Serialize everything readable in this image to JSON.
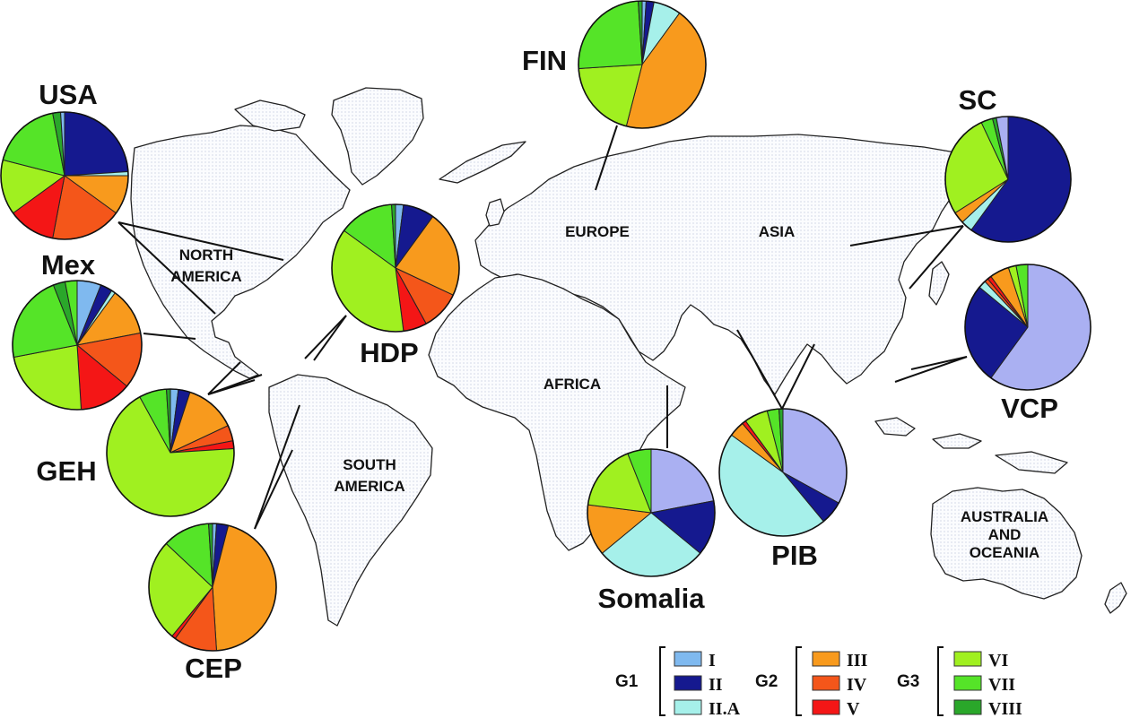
{
  "colors": {
    "I": "#7fb9ef",
    "II": "#15198f",
    "II.A": "#a6f0ea",
    "III": "#f89a1d",
    "IV": "#f4561a",
    "V": "#f41616",
    "VI": "#a0f020",
    "VII": "#55e428",
    "VIII": "#2aa72a",
    "Ilav": "#aab0f2"
  },
  "continents": {
    "north_america": [
      "NORTH",
      "AMERICA"
    ],
    "south_america": [
      "SOUTH",
      "AMERICA"
    ],
    "europe": "EUROPE",
    "asia": "ASIA",
    "africa": "AFRICA",
    "australia": [
      "AUSTRALIA",
      "AND",
      "OCEANIA"
    ]
  },
  "populations": [
    {
      "id": "usa",
      "label": "USA",
      "slices": [
        [
          "II",
          24
        ],
        [
          "II.A",
          1
        ],
        [
          "III",
          10
        ],
        [
          "IV",
          18
        ],
        [
          "V",
          12
        ],
        [
          "VI",
          14
        ],
        [
          "VII",
          18
        ],
        [
          "VIII",
          2
        ],
        [
          "I",
          1
        ]
      ]
    },
    {
      "id": "mex",
      "label": "Mex",
      "slices": [
        [
          "I",
          6
        ],
        [
          "II",
          3
        ],
        [
          "II.A",
          1
        ],
        [
          "III",
          12
        ],
        [
          "IV",
          14
        ],
        [
          "V",
          13
        ],
        [
          "VI",
          23
        ],
        [
          "VII",
          22
        ],
        [
          "VIII",
          3
        ],
        [
          "VII",
          3
        ]
      ]
    },
    {
      "id": "geh",
      "label": "GEH",
      "slices": [
        [
          "I",
          2
        ],
        [
          "II",
          3
        ],
        [
          "III",
          13
        ],
        [
          "IV",
          4
        ],
        [
          "V",
          2
        ],
        [
          "VI",
          68
        ],
        [
          "VII",
          7
        ],
        [
          "VIII",
          1
        ]
      ]
    },
    {
      "id": "cep",
      "label": "CEP",
      "slices": [
        [
          "I",
          1
        ],
        [
          "II",
          3
        ],
        [
          "III",
          45
        ],
        [
          "IV",
          11
        ],
        [
          "V",
          1
        ],
        [
          "VI",
          26
        ],
        [
          "VII",
          12
        ],
        [
          "VIII",
          1
        ]
      ]
    },
    {
      "id": "hdp",
      "label": "HDP",
      "slices": [
        [
          "I",
          2
        ],
        [
          "II",
          8
        ],
        [
          "III",
          22
        ],
        [
          "IV",
          10
        ],
        [
          "V",
          6
        ],
        [
          "VI",
          37
        ],
        [
          "VII",
          14
        ],
        [
          "VIII",
          1
        ]
      ]
    },
    {
      "id": "fin",
      "label": "FIN",
      "slices": [
        [
          "I",
          1
        ],
        [
          "II",
          2
        ],
        [
          "II.A",
          7
        ],
        [
          "III",
          44
        ],
        [
          "VI",
          20
        ],
        [
          "VII",
          25
        ],
        [
          "VIII",
          1
        ]
      ]
    },
    {
      "id": "sc",
      "label": "SC",
      "slices": [
        [
          "II",
          60
        ],
        [
          "II.A",
          3
        ],
        [
          "III",
          3
        ],
        [
          "VI",
          27
        ],
        [
          "VII",
          3
        ],
        [
          "VIII",
          1
        ],
        [
          "Ilav",
          3
        ]
      ]
    },
    {
      "id": "vcp",
      "label": "VCP",
      "slices": [
        [
          "Ilav",
          60
        ],
        [
          "II",
          26
        ],
        [
          "II.A",
          2
        ],
        [
          "IV",
          1
        ],
        [
          "V",
          1
        ],
        [
          "III",
          5
        ],
        [
          "VI",
          2
        ],
        [
          "VII",
          3
        ]
      ]
    },
    {
      "id": "somalia",
      "label": "Somalia",
      "slices": [
        [
          "Ilav",
          22
        ],
        [
          "II",
          14
        ],
        [
          "II.A",
          28
        ],
        [
          "III",
          13
        ],
        [
          "VI",
          17
        ],
        [
          "VII",
          6
        ]
      ]
    },
    {
      "id": "pib",
      "label": "PIB",
      "slices": [
        [
          "Ilav",
          33
        ],
        [
          "II",
          6
        ],
        [
          "II.A",
          46
        ],
        [
          "III",
          4
        ],
        [
          "V",
          1
        ],
        [
          "VI",
          6
        ],
        [
          "VII",
          3
        ],
        [
          "VIII",
          1
        ]
      ]
    }
  ],
  "legend": {
    "groups": [
      {
        "name": "G1",
        "items": [
          {
            "key": "I",
            "label": "I"
          },
          {
            "key": "II",
            "label": "II"
          },
          {
            "key": "II.A",
            "label": "II.A"
          }
        ]
      },
      {
        "name": "G2",
        "items": [
          {
            "key": "III",
            "label": "III"
          },
          {
            "key": "IV",
            "label": "IV"
          },
          {
            "key": "V",
            "label": "V"
          }
        ]
      },
      {
        "name": "G3",
        "items": [
          {
            "key": "VI",
            "label": "VI"
          },
          {
            "key": "VII",
            "label": "VII"
          },
          {
            "key": "VIII",
            "label": "VIII"
          }
        ]
      }
    ]
  }
}
